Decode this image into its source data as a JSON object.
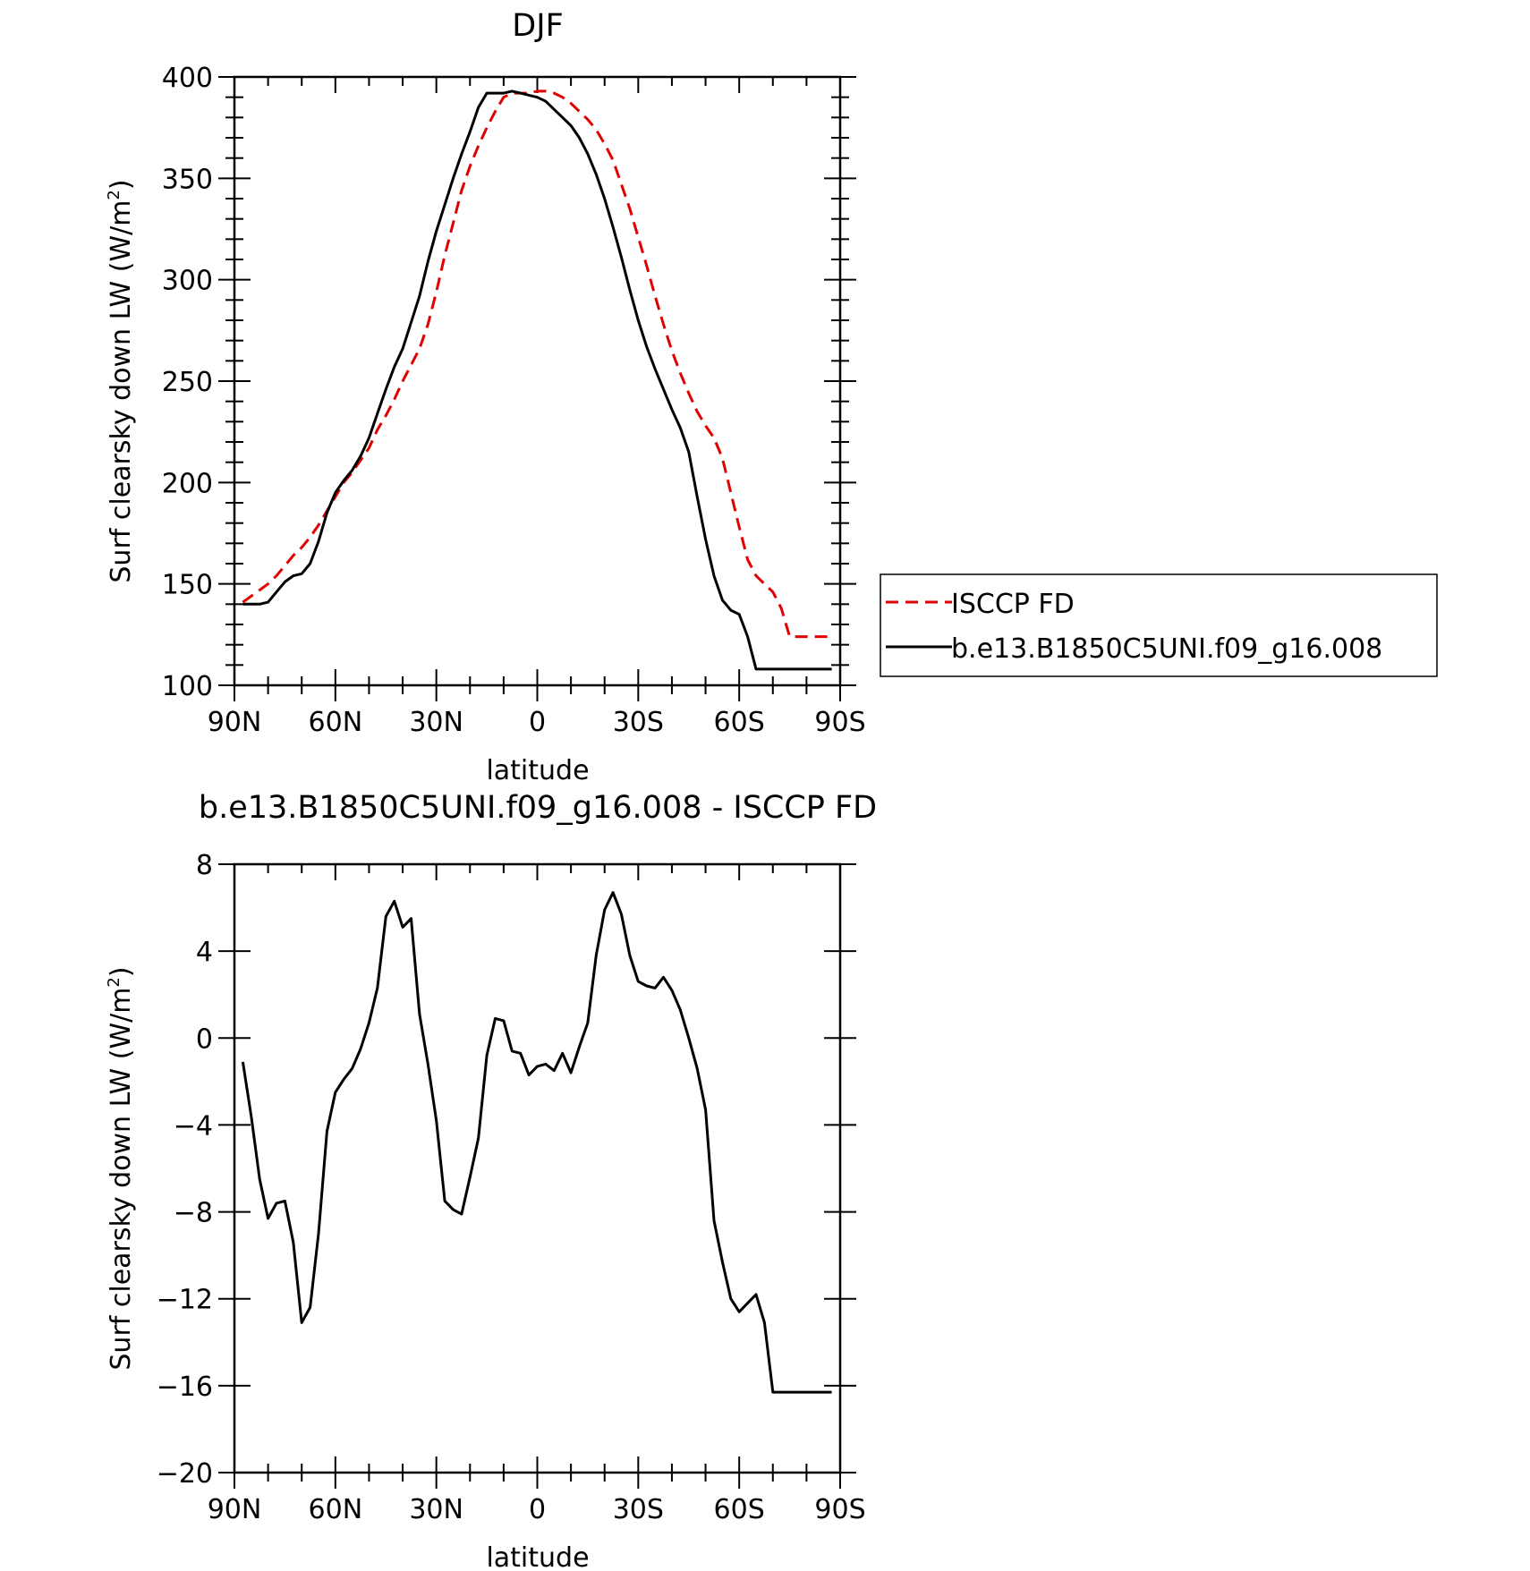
{
  "chart_data": [
    {
      "type": "line",
      "title": "DJF",
      "xlabel": "latitude",
      "ylabel": "Surf clearsky down LW (W/m",
      "ylabel_sup": "2",
      "ylabel_close": ")",
      "xlim": [
        90,
        -90
      ],
      "ylim": [
        100,
        400
      ],
      "xticks": [
        90,
        60,
        30,
        0,
        -30,
        -60,
        -90
      ],
      "xticklabels": [
        "90N",
        "60N",
        "30N",
        "0",
        "30S",
        "60S",
        "90S"
      ],
      "yticks": [
        100,
        150,
        200,
        250,
        300,
        350,
        400
      ],
      "yticklabels": [
        "100",
        "150",
        "200",
        "250",
        "300",
        "350",
        "400"
      ],
      "legend": {
        "placement": "outside-right"
      },
      "series": [
        {
          "name": "ISCCP FD",
          "color": "#e00000",
          "dash": "dashed",
          "x": [
            87.5,
            85,
            82.5,
            80,
            77.5,
            75,
            72.5,
            70,
            67.5,
            65,
            62.5,
            60,
            57.5,
            55,
            52.5,
            50,
            47.5,
            45,
            42.5,
            40,
            37.5,
            35,
            32.5,
            30,
            27.5,
            25,
            22.5,
            20,
            17.5,
            15,
            12.5,
            10,
            7.5,
            5,
            2.5,
            0,
            -2.5,
            -5,
            -7.5,
            -10,
            -12.5,
            -15,
            -17.5,
            -20,
            -22.5,
            -25,
            -27.5,
            -30,
            -32.5,
            -35,
            -37.5,
            -40,
            -42.5,
            -45,
            -47.5,
            -50,
            -52.5,
            -55,
            -57.5,
            -60,
            -62.5,
            -65,
            -67.5,
            -70,
            -72.5,
            -75,
            -77.5,
            -80,
            -82.5,
            -85,
            -87.5
          ],
          "values": [
            141,
            144,
            147,
            150,
            154,
            159,
            164,
            168,
            173,
            179,
            186,
            193,
            200,
            205,
            211,
            217,
            226,
            233,
            241,
            250,
            258,
            266,
            278,
            294,
            312,
            328,
            344,
            356,
            366,
            375,
            383,
            390,
            392,
            392,
            392,
            393,
            393,
            392,
            390,
            387,
            383,
            379,
            374,
            367,
            359,
            347,
            335,
            321,
            307,
            292,
            278,
            265,
            254,
            244,
            235,
            228,
            222,
            212,
            195,
            178,
            162,
            154,
            150,
            146,
            138,
            124,
            124,
            124,
            124,
            124,
            124
          ]
        },
        {
          "name": "b.e13.B1850C5UNI.f09_g16.008",
          "color": "#000000",
          "dash": "solid",
          "x": [
            87.5,
            85,
            82.5,
            80,
            77.5,
            75,
            72.5,
            70,
            67.5,
            65,
            62.5,
            60,
            57.5,
            55,
            52.5,
            50,
            47.5,
            45,
            42.5,
            40,
            37.5,
            35,
            32.5,
            30,
            27.5,
            25,
            22.5,
            20,
            17.5,
            15,
            12.5,
            10,
            7.5,
            5,
            2.5,
            0,
            -2.5,
            -5,
            -7.5,
            -10,
            -12.5,
            -15,
            -17.5,
            -20,
            -22.5,
            -25,
            -27.5,
            -30,
            -32.5,
            -35,
            -37.5,
            -40,
            -42.5,
            -45,
            -47.5,
            -50,
            -52.5,
            -55,
            -57.5,
            -60,
            -62.5,
            -65,
            -67.5,
            -70,
            -72.5,
            -75,
            -77.5,
            -80,
            -82.5,
            -85,
            -87.5
          ],
          "values": [
            140,
            140,
            140,
            141,
            146,
            151,
            154,
            155,
            160,
            171,
            185,
            195,
            201,
            206,
            213,
            222,
            234,
            246,
            257,
            266,
            279,
            292,
            309,
            324,
            337,
            350,
            362,
            373,
            385,
            392,
            392,
            392,
            393,
            392,
            391,
            390,
            388,
            384,
            380,
            376,
            370,
            362,
            352,
            340,
            326,
            311,
            295,
            280,
            267,
            256,
            246,
            236,
            227,
            215,
            193,
            172,
            154,
            142,
            137,
            135,
            124,
            108,
            108,
            108,
            108,
            108,
            108,
            108,
            108,
            108,
            108
          ]
        }
      ]
    },
    {
      "type": "line",
      "title": "b.e13.B1850C5UNI.f09_g16.008 - ISCCP FD",
      "xlabel": "latitude",
      "ylabel": "Surf clearsky down LW (W/m",
      "ylabel_sup": "2",
      "ylabel_close": ")",
      "xlim": [
        90,
        -90
      ],
      "ylim": [
        -20,
        8
      ],
      "xticks": [
        90,
        60,
        30,
        0,
        -30,
        -60,
        -90
      ],
      "xticklabels": [
        "90N",
        "60N",
        "30N",
        "0",
        "30S",
        "60S",
        "90S"
      ],
      "yticks": [
        -20,
        -16,
        -12,
        -8,
        -4,
        0,
        4,
        8
      ],
      "yticklabels": [
        "−20",
        "−16",
        "−12",
        "−8",
        "−4",
        "0",
        "4",
        "8"
      ],
      "series": [
        {
          "color": "#000000",
          "dash": "solid",
          "x": [
            87.5,
            85,
            82.5,
            80,
            77.5,
            75,
            72.5,
            70,
            67.5,
            65,
            62.5,
            60,
            57.5,
            55,
            52.5,
            50,
            47.5,
            45,
            42.5,
            40,
            37.5,
            35,
            32.5,
            30,
            27.5,
            25,
            22.5,
            20,
            17.5,
            15,
            12.5,
            10,
            7.5,
            5,
            2.5,
            0,
            -2.5,
            -5,
            -7.5,
            -10,
            -12.5,
            -15,
            -17.5,
            -20,
            -22.5,
            -25,
            -27.5,
            -30,
            -32.5,
            -35,
            -37.5,
            -40,
            -42.5,
            -45,
            -47.5,
            -50,
            -52.5,
            -55,
            -57.5,
            -60,
            -62.5,
            -65,
            -67.5,
            -70,
            -72.5,
            -75,
            -77.5,
            -80,
            -82.5,
            -85,
            -87.5
          ],
          "values": [
            -1.1,
            -3.6,
            -6.5,
            -8.3,
            -7.6,
            -7.5,
            -9.4,
            -13.1,
            -12.4,
            -9.0,
            -4.3,
            -2.5,
            -1.9,
            -1.4,
            -0.5,
            0.7,
            2.3,
            5.6,
            6.3,
            5.1,
            5.5,
            1.1,
            -1.2,
            -3.8,
            -7.5,
            -7.9,
            -8.1,
            -6.4,
            -4.6,
            -0.8,
            0.9,
            0.8,
            -0.6,
            -0.7,
            -1.7,
            -1.3,
            -1.2,
            -1.5,
            -0.7,
            -1.6,
            -0.4,
            0.7,
            3.8,
            5.9,
            6.7,
            5.7,
            3.8,
            2.6,
            2.4,
            2.3,
            2.8,
            2.2,
            1.3,
            0.0,
            -1.4,
            -3.3,
            -8.4,
            -10.3,
            -12.0,
            -12.6,
            -12.2,
            -11.8,
            -13.1,
            -16.3,
            -16.3,
            -16.3,
            -16.3,
            -16.3,
            -16.3,
            -16.3,
            -16.3
          ]
        }
      ]
    }
  ]
}
